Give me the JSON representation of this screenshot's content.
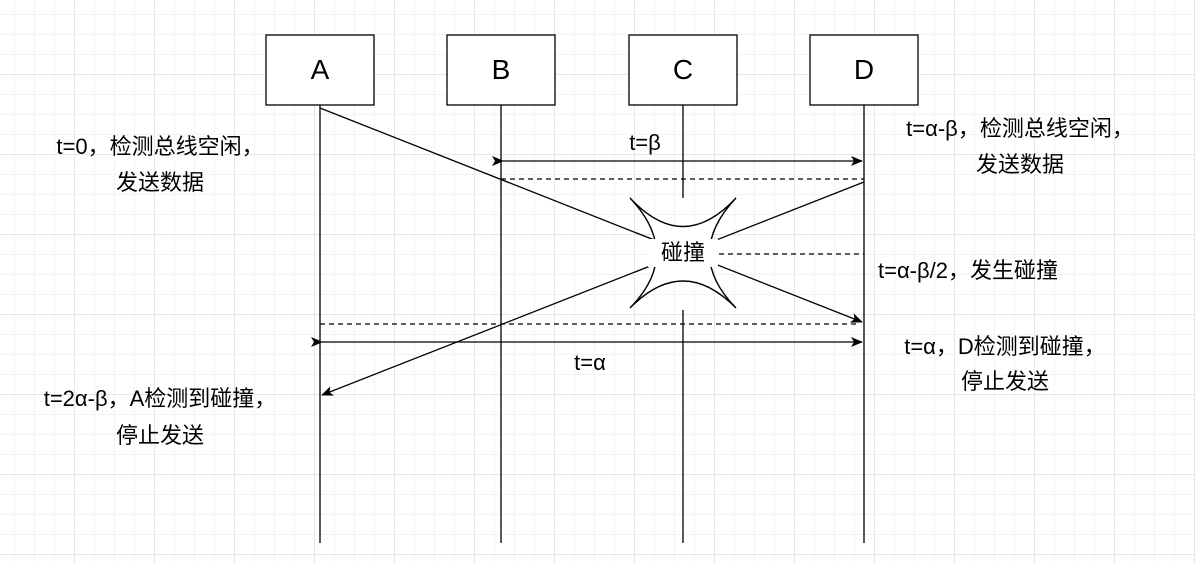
{
  "nodes": [
    {
      "id": "A",
      "label": "A"
    },
    {
      "id": "B",
      "label": "B"
    },
    {
      "id": "C",
      "label": "C"
    },
    {
      "id": "D",
      "label": "D"
    }
  ],
  "labels": {
    "t_beta": "t=β",
    "t_alpha": "t=α",
    "collision": "碰撞",
    "a_start_line1": "t=0，检测总线空闲，",
    "a_start_line2": "发送数据",
    "d_start_line1": "t=α-β，检测总线空闲，",
    "d_start_line2": "发送数据",
    "collide_time": "t=α-β/2，发生碰撞",
    "d_detect_line1": "t=α，D检测到碰撞，",
    "d_detect_line2": "停止发送",
    "a_detect_line1": "t=2α-β，A检测到碰撞，",
    "a_detect_line2": "停止发送"
  }
}
